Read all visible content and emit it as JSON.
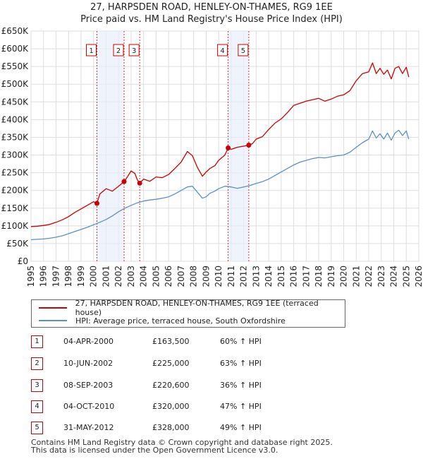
{
  "title_line1": "27, HARPSDEN ROAD, HENLEY-ON-THAMES, RG9 1EE",
  "title_line2": "Price paid vs. HM Land Registry's House Price Index (HPI)",
  "chart_data": {
    "type": "line",
    "title": "Price paid vs. HM Land Registry's House Price Index (HPI)",
    "xlabel": "",
    "ylabel": "",
    "xlim": [
      1995,
      2026
    ],
    "ylim": [
      0,
      650000
    ],
    "y_ticks": [
      0,
      50000,
      100000,
      150000,
      200000,
      250000,
      300000,
      350000,
      400000,
      450000,
      500000,
      550000,
      600000,
      650000
    ],
    "y_tick_labels": [
      "£0",
      "£50K",
      "£100K",
      "£150K",
      "£200K",
      "£250K",
      "£300K",
      "£350K",
      "£400K",
      "£450K",
      "£500K",
      "£550K",
      "£600K",
      "£650K"
    ],
    "x_ticks": [
      1995,
      1996,
      1997,
      1998,
      1999,
      2000,
      2001,
      2002,
      2003,
      2004,
      2005,
      2006,
      2007,
      2008,
      2009,
      2010,
      2011,
      2012,
      2013,
      2014,
      2015,
      2016,
      2017,
      2018,
      2019,
      2020,
      2021,
      2022,
      2023,
      2024,
      2025,
      2026
    ],
    "grid": true,
    "series": [
      {
        "name": "27, HARPSDEN ROAD, HENLEY-ON-THAMES, RG9 1EE (terraced house)",
        "color": "#cc0000",
        "x": [
          1995.0,
          1995.5,
          1996.0,
          1996.5,
          1997.0,
          1997.5,
          1998.0,
          1998.5,
          1999.0,
          1999.5,
          2000.0,
          2000.27,
          2000.5,
          2001.0,
          2001.5,
          2002.0,
          2002.44,
          2002.7,
          2003.0,
          2003.3,
          2003.5,
          2003.69,
          2004.0,
          2004.5,
          2005.0,
          2005.5,
          2006.0,
          2006.5,
          2007.0,
          2007.5,
          2007.9,
          2008.3,
          2008.7,
          2009.0,
          2009.3,
          2009.7,
          2010.0,
          2010.5,
          2010.76,
          2011.0,
          2011.5,
          2012.0,
          2012.41,
          2012.7,
          2013.0,
          2013.5,
          2014.0,
          2014.5,
          2015.0,
          2015.5,
          2016.0,
          2016.5,
          2017.0,
          2017.5,
          2018.0,
          2018.5,
          2019.0,
          2019.5,
          2020.0,
          2020.5,
          2021.0,
          2021.5,
          2022.0,
          2022.3,
          2022.6,
          2022.9,
          2023.2,
          2023.5,
          2023.8,
          2024.1,
          2024.4,
          2024.7,
          2025.0,
          2025.2
        ],
        "values": [
          98000,
          99000,
          101000,
          104000,
          110000,
          117000,
          126000,
          138000,
          148000,
          158000,
          168000,
          163500,
          190000,
          205000,
          198000,
          212000,
          225000,
          238000,
          255000,
          248000,
          230000,
          220600,
          232000,
          226000,
          238000,
          236000,
          245000,
          262000,
          280000,
          310000,
          298000,
          265000,
          240000,
          252000,
          262000,
          270000,
          285000,
          300000,
          320000,
          316000,
          322000,
          325000,
          328000,
          332000,
          345000,
          352000,
          372000,
          390000,
          402000,
          420000,
          440000,
          446000,
          452000,
          456000,
          460000,
          452000,
          458000,
          466000,
          470000,
          482000,
          510000,
          530000,
          535000,
          560000,
          530000,
          545000,
          528000,
          540000,
          515000,
          545000,
          550000,
          530000,
          548000,
          520000
        ]
      },
      {
        "name": "HPI: Average price, terraced house, South Oxfordshire",
        "color": "#5b8fc9",
        "x": [
          1995.0,
          1995.5,
          1996.0,
          1996.5,
          1997.0,
          1997.5,
          1998.0,
          1998.5,
          1999.0,
          1999.5,
          2000.0,
          2000.5,
          2001.0,
          2001.5,
          2002.0,
          2002.5,
          2003.0,
          2003.5,
          2004.0,
          2004.5,
          2005.0,
          2005.5,
          2006.0,
          2006.5,
          2007.0,
          2007.5,
          2007.9,
          2008.3,
          2008.7,
          2009.0,
          2009.3,
          2009.7,
          2010.0,
          2010.5,
          2011.0,
          2011.5,
          2012.0,
          2012.5,
          2013.0,
          2013.5,
          2014.0,
          2014.5,
          2015.0,
          2015.5,
          2016.0,
          2016.5,
          2017.0,
          2017.5,
          2018.0,
          2018.5,
          2019.0,
          2019.5,
          2020.0,
          2020.5,
          2021.0,
          2021.5,
          2022.0,
          2022.3,
          2022.6,
          2022.9,
          2023.2,
          2023.5,
          2023.8,
          2024.1,
          2024.4,
          2024.7,
          2025.0,
          2025.2
        ],
        "values": [
          61000,
          62000,
          63000,
          65000,
          68000,
          72000,
          78000,
          84000,
          90000,
          96000,
          103000,
          110000,
          118000,
          128000,
          140000,
          150000,
          158000,
          165000,
          170000,
          173000,
          175000,
          178000,
          182000,
          190000,
          200000,
          210000,
          212000,
          195000,
          178000,
          182000,
          192000,
          198000,
          205000,
          212000,
          210000,
          206000,
          210000,
          214000,
          220000,
          225000,
          232000,
          242000,
          252000,
          262000,
          272000,
          280000,
          285000,
          290000,
          293000,
          292000,
          295000,
          298000,
          300000,
          308000,
          322000,
          335000,
          345000,
          368000,
          348000,
          360000,
          345000,
          362000,
          342000,
          362000,
          370000,
          355000,
          368000,
          345000
        ]
      }
    ],
    "sales": [
      {
        "label": "1",
        "x": 2000.27,
        "value": 163500
      },
      {
        "label": "2",
        "x": 2002.44,
        "value": 225000
      },
      {
        "label": "3",
        "x": 2003.69,
        "value": 220600
      },
      {
        "label": "4",
        "x": 2010.76,
        "value": 320000
      },
      {
        "label": "5",
        "x": 2012.41,
        "value": 328000
      }
    ]
  },
  "legend": {
    "items": [
      {
        "label": "27, HARPSDEN ROAD, HENLEY-ON-THAMES, RG9 1EE (terraced house)",
        "color": "#cc0000"
      },
      {
        "label": "HPI: Average price, terraced house, South Oxfordshire",
        "color": "#5b8fc9"
      }
    ]
  },
  "table": {
    "rows": [
      {
        "num": "1",
        "date": "04-APR-2000",
        "price": "£163,500",
        "hpi": "60% ↑ HPI"
      },
      {
        "num": "2",
        "date": "10-JUN-2002",
        "price": "£225,000",
        "hpi": "63% ↑ HPI"
      },
      {
        "num": "3",
        "date": "08-SEP-2003",
        "price": "£220,600",
        "hpi": "36% ↑ HPI"
      },
      {
        "num": "4",
        "date": "04-OCT-2010",
        "price": "£320,000",
        "hpi": "47% ↑ HPI"
      },
      {
        "num": "5",
        "date": "31-MAY-2012",
        "price": "£328,000",
        "hpi": "49% ↑ HPI"
      }
    ]
  },
  "footer": {
    "line1": "Contains HM Land Registry data © Crown copyright and database right 2025.",
    "line2": "This data is licensed under the Open Government Licence v3.0."
  }
}
